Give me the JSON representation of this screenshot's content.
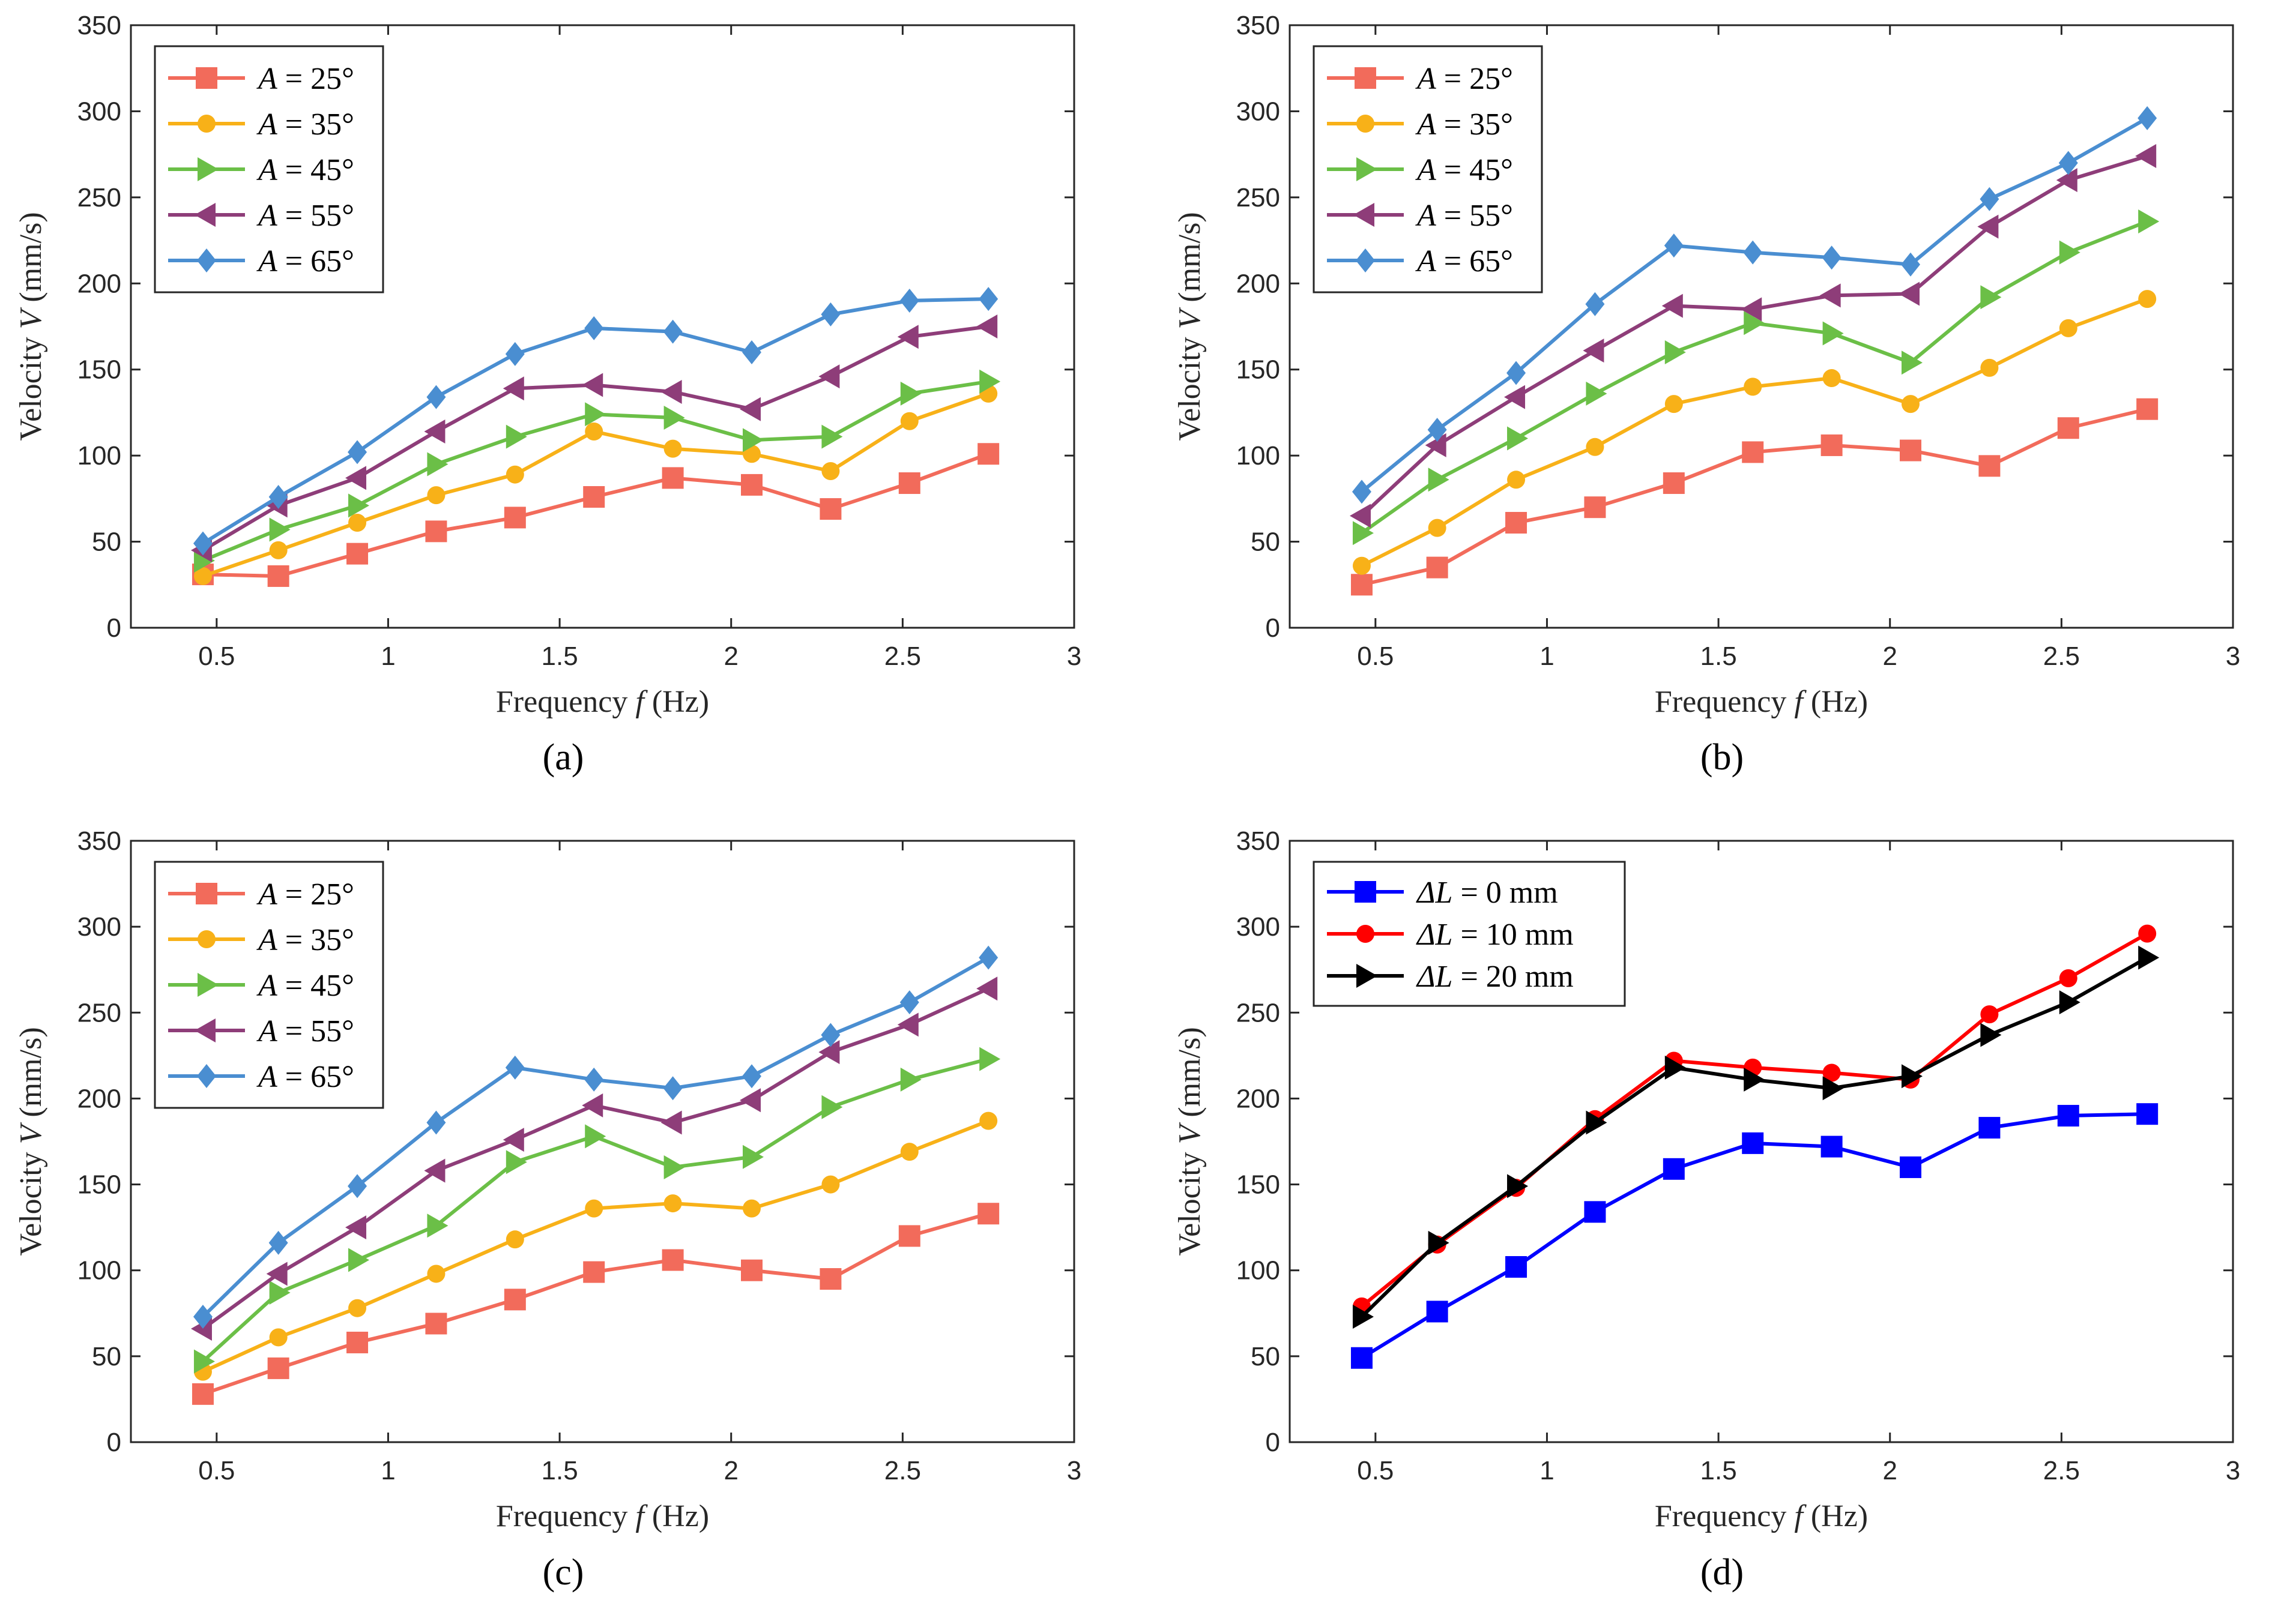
{
  "chart_data": [
    {
      "type": "line",
      "panel_label": "(a)",
      "xlabel_pre": "Frequency ",
      "xlabel_var": "f",
      "xlabel_post": " (Hz)",
      "ylabel_pre": "Velocity  ",
      "ylabel_var": "V",
      "ylabel_post": " (mm/s)",
      "xlim": [
        0.25,
        3
      ],
      "ylim": [
        0,
        350
      ],
      "xticks": [
        "0.5",
        "1",
        "1.5",
        "2",
        "2.5",
        "3"
      ],
      "yticks": [
        "0",
        "50",
        "100",
        "150",
        "200",
        "250",
        "300",
        "350"
      ],
      "legend_position": "top-left",
      "x": [
        0.46,
        0.68,
        0.91,
        1.14,
        1.37,
        1.6,
        1.83,
        2.06,
        2.29,
        2.52,
        2.75
      ],
      "series": [
        {
          "name_var": "A",
          "name_rest": " = 25°",
          "marker": "square",
          "color": "#f26b5b",
          "values": [
            31,
            30,
            43,
            56,
            64,
            76,
            87,
            83,
            69,
            84,
            101
          ]
        },
        {
          "name_var": "A",
          "name_rest": " = 35°",
          "marker": "circle",
          "color": "#f8b118",
          "values": [
            30,
            45,
            61,
            77,
            89,
            114,
            104,
            101,
            91,
            120,
            136
          ]
        },
        {
          "name_var": "A",
          "name_rest": " = 45°",
          "marker": "triangle-right",
          "color": "#6bbf47",
          "values": [
            39,
            57,
            71,
            95,
            111,
            124,
            122,
            109,
            111,
            136,
            143
          ]
        },
        {
          "name_var": "A",
          "name_rest": " = 55°",
          "marker": "triangle-left",
          "color": "#8e3d79",
          "values": [
            45,
            71,
            87,
            114,
            139,
            141,
            137,
            127,
            146,
            169,
            175
          ]
        },
        {
          "name_var": "A",
          "name_rest": " = 65°",
          "marker": "diamond",
          "color": "#4a8ed1",
          "values": [
            49,
            76,
            102,
            134,
            159,
            174,
            172,
            160,
            182,
            190,
            191
          ]
        }
      ]
    },
    {
      "type": "line",
      "panel_label": "(b)",
      "xlabel_pre": "Frequency ",
      "xlabel_var": "f",
      "xlabel_post": " (Hz)",
      "ylabel_pre": "Velocity  ",
      "ylabel_var": "V",
      "ylabel_post": " (mm/s)",
      "xlim": [
        0.25,
        3
      ],
      "ylim": [
        0,
        350
      ],
      "xticks": [
        "0.5",
        "1",
        "1.5",
        "2",
        "2.5",
        "3"
      ],
      "yticks": [
        "0",
        "50",
        "100",
        "150",
        "200",
        "250",
        "300",
        "350"
      ],
      "legend_position": "top-left",
      "x": [
        0.46,
        0.68,
        0.91,
        1.14,
        1.37,
        1.6,
        1.83,
        2.06,
        2.29,
        2.52,
        2.75
      ],
      "series": [
        {
          "name_var": "A",
          "name_rest": " = 25°",
          "marker": "square",
          "color": "#f26b5b",
          "values": [
            25,
            35,
            61,
            70,
            84,
            102,
            106,
            103,
            94,
            116,
            127
          ]
        },
        {
          "name_var": "A",
          "name_rest": " = 35°",
          "marker": "circle",
          "color": "#f8b118",
          "values": [
            36,
            58,
            86,
            105,
            130,
            140,
            145,
            130,
            151,
            174,
            191
          ]
        },
        {
          "name_var": "A",
          "name_rest": " = 45°",
          "marker": "triangle-right",
          "color": "#6bbf47",
          "values": [
            55,
            86,
            110,
            136,
            160,
            177,
            171,
            154,
            192,
            218,
            236
          ]
        },
        {
          "name_var": "A",
          "name_rest": " = 55°",
          "marker": "triangle-left",
          "color": "#8e3d79",
          "values": [
            65,
            106,
            134,
            161,
            187,
            185,
            193,
            194,
            233,
            260,
            274
          ]
        },
        {
          "name_var": "A",
          "name_rest": " = 65°",
          "marker": "diamond",
          "color": "#4a8ed1",
          "values": [
            79,
            115,
            148,
            188,
            222,
            218,
            215,
            211,
            249,
            270,
            296
          ]
        }
      ]
    },
    {
      "type": "line",
      "panel_label": "(c)",
      "xlabel_pre": "Frequency ",
      "xlabel_var": "f",
      "xlabel_post": " (Hz)",
      "ylabel_pre": "Velocity  ",
      "ylabel_var": "V",
      "ylabel_post": " (mm/s)",
      "xlim": [
        0.25,
        3
      ],
      "ylim": [
        0,
        350
      ],
      "xticks": [
        "0.5",
        "1",
        "1.5",
        "2",
        "2.5",
        "3"
      ],
      "yticks": [
        "0",
        "50",
        "100",
        "150",
        "200",
        "250",
        "300",
        "350"
      ],
      "legend_position": "top-left",
      "x": [
        0.46,
        0.68,
        0.91,
        1.14,
        1.37,
        1.6,
        1.83,
        2.06,
        2.29,
        2.52,
        2.75
      ],
      "series": [
        {
          "name_var": "A",
          "name_rest": " = 25°",
          "marker": "square",
          "color": "#f26b5b",
          "values": [
            28,
            43,
            58,
            69,
            83,
            99,
            106,
            100,
            95,
            120,
            133
          ]
        },
        {
          "name_var": "A",
          "name_rest": " = 35°",
          "marker": "circle",
          "color": "#f8b118",
          "values": [
            41,
            61,
            78,
            98,
            118,
            136,
            139,
            136,
            150,
            169,
            187
          ]
        },
        {
          "name_var": "A",
          "name_rest": " = 45°",
          "marker": "triangle-right",
          "color": "#6bbf47",
          "values": [
            47,
            87,
            106,
            126,
            163,
            178,
            160,
            166,
            195,
            211,
            223
          ]
        },
        {
          "name_var": "A",
          "name_rest": " = 55°",
          "marker": "triangle-left",
          "color": "#8e3d79",
          "values": [
            66,
            98,
            125,
            158,
            176,
            196,
            186,
            199,
            227,
            243,
            264
          ]
        },
        {
          "name_var": "A",
          "name_rest": " = 65°",
          "marker": "diamond",
          "color": "#4a8ed1",
          "values": [
            73,
            116,
            149,
            186,
            218,
            211,
            206,
            213,
            237,
            256,
            282
          ]
        }
      ]
    },
    {
      "type": "line",
      "panel_label": "(d)",
      "xlabel_pre": "Frequency ",
      "xlabel_var": "f",
      "xlabel_post": " (Hz)",
      "ylabel_pre": "Velocity  ",
      "ylabel_var": "V",
      "ylabel_post": " (mm/s)",
      "xlim": [
        0.25,
        3
      ],
      "ylim": [
        0,
        350
      ],
      "xticks": [
        "0.5",
        "1",
        "1.5",
        "2",
        "2.5",
        "3"
      ],
      "yticks": [
        "0",
        "50",
        "100",
        "150",
        "200",
        "250",
        "300",
        "350"
      ],
      "legend_position": "top-left",
      "x": [
        0.46,
        0.68,
        0.91,
        1.14,
        1.37,
        1.6,
        1.83,
        2.06,
        2.29,
        2.52,
        2.75
      ],
      "series": [
        {
          "name_var": "ΔL",
          "name_rest": " = 0 mm",
          "marker": "square",
          "color": "#0000ff",
          "values": [
            49,
            76,
            102,
            134,
            159,
            174,
            172,
            160,
            183,
            190,
            191
          ]
        },
        {
          "name_var": "ΔL",
          "name_rest": " = 10 mm",
          "marker": "circle",
          "color": "#ff0000",
          "values": [
            79,
            115,
            148,
            188,
            222,
            218,
            215,
            211,
            249,
            270,
            296
          ]
        },
        {
          "name_var": "ΔL",
          "name_rest": " = 20 mm",
          "marker": "triangle-right",
          "color": "#000000",
          "values": [
            73,
            116,
            149,
            186,
            218,
            211,
            206,
            213,
            237,
            256,
            282
          ]
        }
      ]
    }
  ]
}
